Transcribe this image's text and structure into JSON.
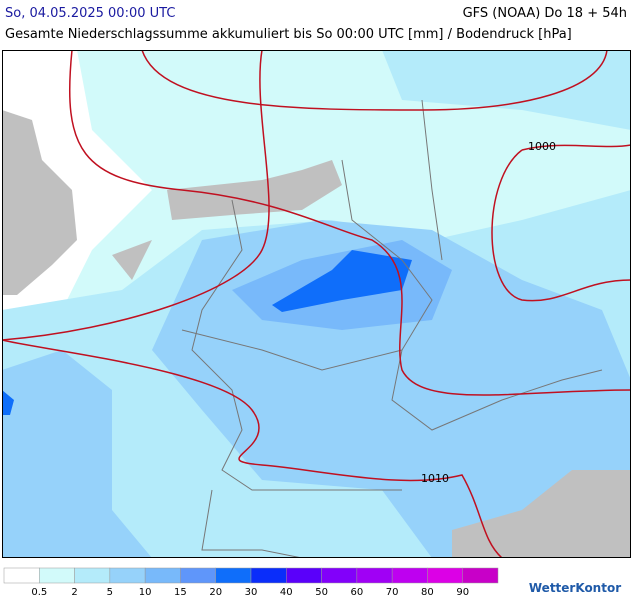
{
  "header": {
    "date": "So, 04.05.2025 00:00 UTC",
    "model": "GFS (NOAA) Do 18 + 54h",
    "subtitle": "Gesamte Niederschlagssumme akkumuliert bis So 00:00 UTC [mm] / Bodendruck [hPa]"
  },
  "map": {
    "isobar_labels": [
      "1000",
      "1010"
    ]
  },
  "legend": {
    "labels": [
      0.5,
      2,
      5,
      10,
      15,
      20,
      30,
      40,
      50,
      60,
      70,
      80,
      90
    ],
    "colors": [
      "#ffffff",
      "#d2fafa",
      "#b4ebfa",
      "#96d2fa",
      "#78b9fa",
      "#5f96fa",
      "#0f6efa",
      "#0a2dfa",
      "#5a00fa",
      "#8200fa",
      "#a000f5",
      "#be00f0",
      "#dc00e6",
      "#c800c8"
    ]
  },
  "logo": "WetterKontor"
}
